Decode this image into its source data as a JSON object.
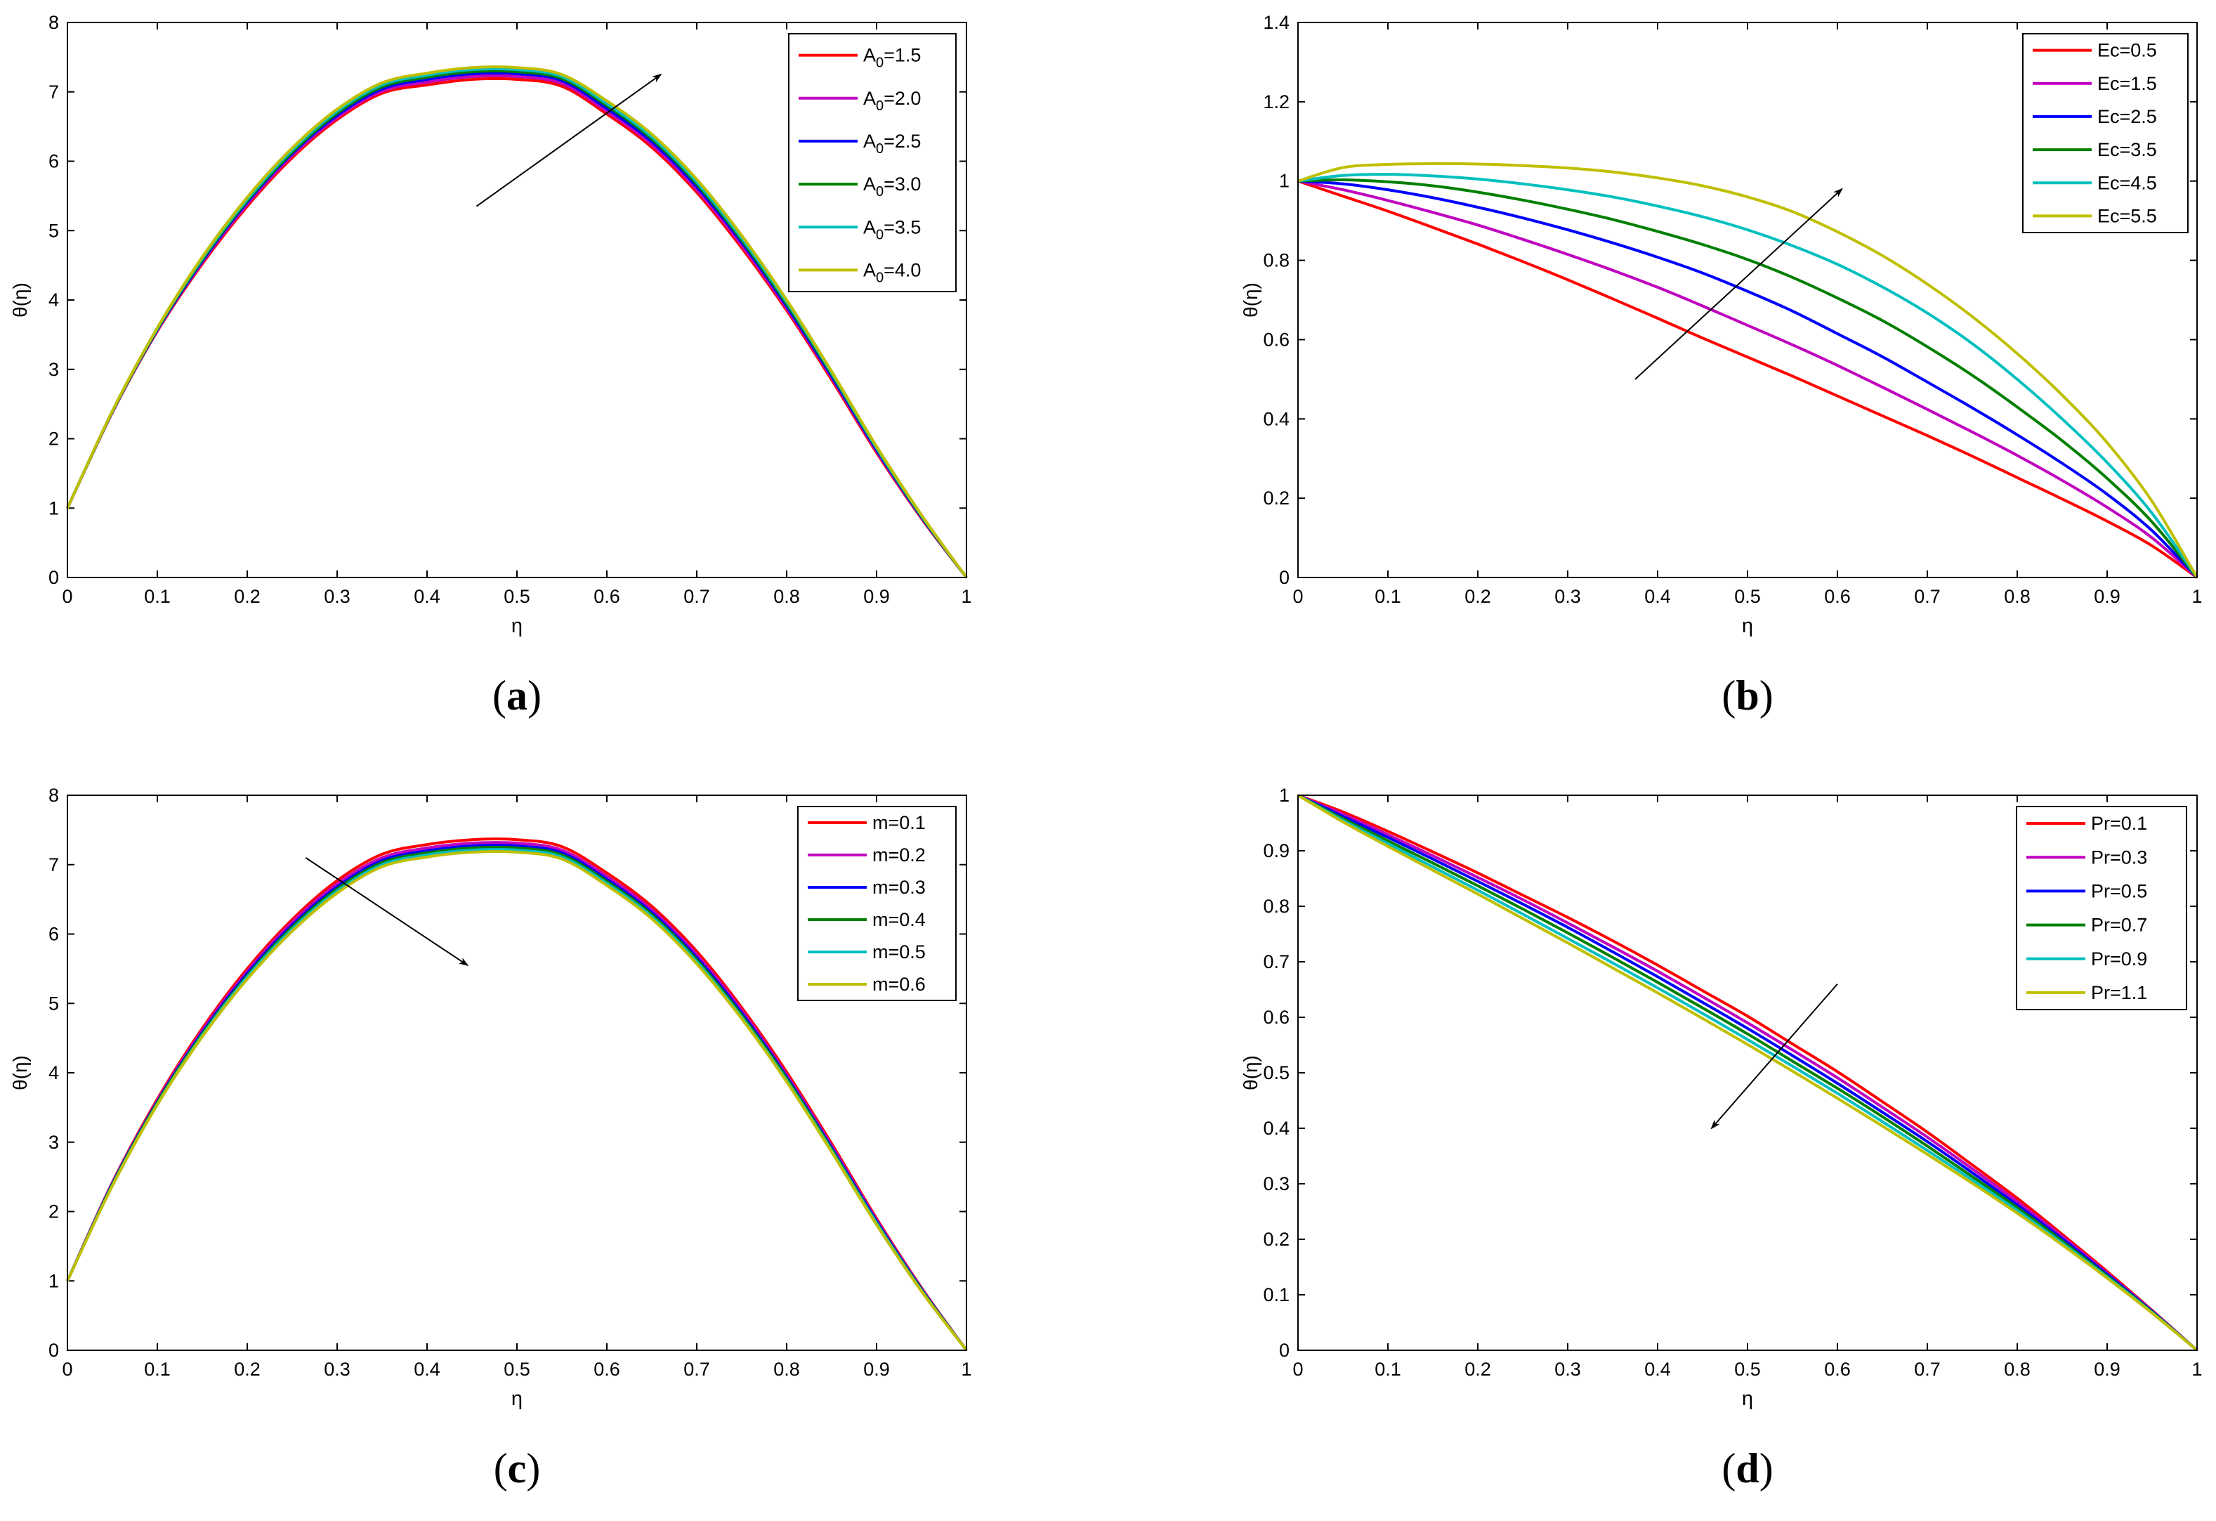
{
  "colors": [
    "#ff0000",
    "#bf00bf",
    "#0000ff",
    "#007f00",
    "#00bfbf",
    "#bfbf00"
  ],
  "chart_data": [
    {
      "id": "a",
      "type": "line",
      "panel_label": "(a)",
      "panel_letter": "a",
      "xlabel": "η",
      "ylabel": "θ(η)",
      "xlim": [
        0,
        1
      ],
      "ylim": [
        0,
        8
      ],
      "xticks": [
        "0",
        "0.1",
        "0.2",
        "0.3",
        "0.4",
        "0.5",
        "0.6",
        "0.7",
        "0.8",
        "0.9",
        "1"
      ],
      "yticks": [
        "0",
        "1",
        "2",
        "3",
        "4",
        "5",
        "6",
        "7",
        "8"
      ],
      "legend_position": "top-right",
      "x": [
        0,
        0.05,
        0.1,
        0.15,
        0.2,
        0.25,
        0.3,
        0.35,
        0.4,
        0.45,
        0.5,
        0.55,
        0.6,
        0.65,
        0.7,
        0.75,
        0.8,
        0.85,
        0.9,
        0.95,
        1
      ],
      "series": [
        {
          "name": "A0=1.5",
          "label_main": "A",
          "label_sub": "0",
          "label_rest": "=1.5",
          "values": [
            1.0,
            2.38,
            3.55,
            4.52,
            5.35,
            6.05,
            6.6,
            6.98,
            7.1,
            7.18,
            7.18,
            7.08,
            6.68,
            6.2,
            5.55,
            4.75,
            3.85,
            2.85,
            1.8,
            0.85,
            0.0
          ]
        },
        {
          "name": "A0=2.0",
          "label_main": "A",
          "label_sub": "0",
          "label_rest": "=2.0",
          "values": [
            1.0,
            2.38,
            3.56,
            4.54,
            5.38,
            6.08,
            6.63,
            7.01,
            7.14,
            7.22,
            7.22,
            7.12,
            6.72,
            6.24,
            5.59,
            4.79,
            3.88,
            2.88,
            1.82,
            0.86,
            0.0
          ]
        },
        {
          "name": "A0=2.5",
          "label_main": "A",
          "label_sub": "0",
          "label_rest": "=2.5",
          "values": [
            1.0,
            2.39,
            3.57,
            4.56,
            5.41,
            6.11,
            6.66,
            7.04,
            7.18,
            7.26,
            7.26,
            7.16,
            6.76,
            6.28,
            5.63,
            4.83,
            3.91,
            2.9,
            1.84,
            0.87,
            0.0
          ]
        },
        {
          "name": "A0=3.0",
          "label_main": "A",
          "label_sub": "0",
          "label_rest": "=3.0",
          "values": [
            1.0,
            2.39,
            3.58,
            4.58,
            5.43,
            6.13,
            6.69,
            7.07,
            7.21,
            7.29,
            7.29,
            7.19,
            6.8,
            6.32,
            5.67,
            4.86,
            3.94,
            2.93,
            1.86,
            0.88,
            0.0
          ]
        },
        {
          "name": "A0=3.5",
          "label_main": "A",
          "label_sub": "0",
          "label_rest": "=3.5",
          "values": [
            1.0,
            2.4,
            3.59,
            4.6,
            5.45,
            6.16,
            6.72,
            7.1,
            7.24,
            7.32,
            7.32,
            7.22,
            6.83,
            6.35,
            5.7,
            4.89,
            3.97,
            2.95,
            1.87,
            0.89,
            0.0
          ]
        },
        {
          "name": "A0=4.0",
          "label_main": "A",
          "label_sub": "0",
          "label_rest": "=4.0",
          "values": [
            1.0,
            2.4,
            3.6,
            4.62,
            5.48,
            6.19,
            6.75,
            7.13,
            7.27,
            7.35,
            7.35,
            7.25,
            6.87,
            6.39,
            5.74,
            4.93,
            4.0,
            2.97,
            1.89,
            0.9,
            0.0
          ]
        }
      ],
      "annotation": {
        "type": "arrow",
        "from": [
          0.455,
          5.35
        ],
        "to": [
          0.66,
          7.25
        ],
        "meaning": "increasing A0"
      }
    },
    {
      "id": "b",
      "type": "line",
      "panel_label": "(b)",
      "panel_letter": "b",
      "xlabel": "η",
      "ylabel": "θ(η)",
      "xlim": [
        0,
        1
      ],
      "ylim": [
        0,
        1.4
      ],
      "xticks": [
        "0",
        "0.1",
        "0.2",
        "0.3",
        "0.4",
        "0.5",
        "0.6",
        "0.7",
        "0.8",
        "0.9",
        "1"
      ],
      "yticks": [
        "0",
        "0.2",
        "0.4",
        "0.6",
        "0.8",
        "1",
        "1.2",
        "1.4"
      ],
      "legend_position": "top-right",
      "x": [
        0,
        0.05,
        0.1,
        0.15,
        0.2,
        0.25,
        0.3,
        0.35,
        0.4,
        0.45,
        0.5,
        0.55,
        0.6,
        0.65,
        0.7,
        0.75,
        0.8,
        0.85,
        0.9,
        0.95,
        1
      ],
      "series": [
        {
          "name": "Ec=0.5",
          "label_main": "Ec=0.5",
          "label_sub": "",
          "label_rest": "",
          "values": [
            1.0,
            0.962,
            0.924,
            0.883,
            0.841,
            0.797,
            0.751,
            0.703,
            0.654,
            0.604,
            0.556,
            0.508,
            0.458,
            0.408,
            0.358,
            0.306,
            0.252,
            0.198,
            0.142,
            0.08,
            0.0
          ]
        },
        {
          "name": "Ec=1.5",
          "label_main": "Ec=1.5",
          "label_sub": "",
          "label_rest": "",
          "values": [
            1.0,
            0.978,
            0.951,
            0.921,
            0.889,
            0.853,
            0.815,
            0.775,
            0.732,
            0.685,
            0.636,
            0.587,
            0.535,
            0.48,
            0.424,
            0.367,
            0.308,
            0.245,
            0.177,
            0.1,
            0.0
          ]
        },
        {
          "name": "Ec=2.5",
          "label_main": "Ec=2.5",
          "label_sub": "",
          "label_rest": "",
          "values": [
            1.0,
            0.993,
            0.978,
            0.958,
            0.934,
            0.907,
            0.877,
            0.844,
            0.808,
            0.768,
            0.722,
            0.672,
            0.615,
            0.557,
            0.493,
            0.428,
            0.36,
            0.288,
            0.21,
            0.118,
            0.0
          ]
        },
        {
          "name": "Ec=3.5",
          "label_main": "Ec=3.5",
          "label_sub": "",
          "label_rest": "",
          "values": [
            1.0,
            1.003,
            0.998,
            0.988,
            0.972,
            0.952,
            0.929,
            0.903,
            0.873,
            0.84,
            0.802,
            0.757,
            0.705,
            0.648,
            0.582,
            0.51,
            0.43,
            0.345,
            0.25,
            0.14,
            0.0
          ]
        },
        {
          "name": "Ec=4.5",
          "label_main": "Ec=4.5",
          "label_sub": "",
          "label_rest": "",
          "values": [
            1.0,
            1.014,
            1.017,
            1.013,
            1.005,
            0.993,
            0.978,
            0.96,
            0.937,
            0.91,
            0.877,
            0.837,
            0.79,
            0.733,
            0.667,
            0.59,
            0.5,
            0.4,
            0.29,
            0.162,
            0.0
          ]
        },
        {
          "name": "Ec=5.5",
          "label_main": "Ec=5.5",
          "label_sub": "",
          "label_rest": "",
          "values": [
            1.0,
            1.034,
            1.042,
            1.044,
            1.043,
            1.039,
            1.033,
            1.023,
            1.008,
            0.988,
            0.96,
            0.923,
            0.872,
            0.812,
            0.74,
            0.658,
            0.565,
            0.46,
            0.34,
            0.192,
            0.0
          ]
        }
      ],
      "annotation": {
        "type": "arrow",
        "from": [
          0.375,
          0.5
        ],
        "to": [
          0.605,
          0.98
        ],
        "meaning": "increasing Ec"
      }
    },
    {
      "id": "c",
      "type": "line",
      "panel_label": "(c)",
      "panel_letter": "c",
      "xlabel": "η",
      "ylabel": "θ(η)",
      "xlim": [
        0,
        1
      ],
      "ylim": [
        0,
        8
      ],
      "xticks": [
        "0",
        "0.1",
        "0.2",
        "0.3",
        "0.4",
        "0.5",
        "0.6",
        "0.7",
        "0.8",
        "0.9",
        "1"
      ],
      "yticks": [
        "0",
        "1",
        "2",
        "3",
        "4",
        "5",
        "6",
        "7",
        "8"
      ],
      "legend_position": "top-right",
      "x": [
        0,
        0.05,
        0.1,
        0.15,
        0.2,
        0.25,
        0.3,
        0.35,
        0.4,
        0.45,
        0.5,
        0.55,
        0.6,
        0.65,
        0.7,
        0.75,
        0.8,
        0.85,
        0.9,
        0.95,
        1
      ],
      "series": [
        {
          "name": "m=0.1",
          "label_main": "m=0.1",
          "label_sub": "",
          "label_rest": "",
          "values": [
            1.0,
            2.42,
            3.62,
            4.64,
            5.5,
            6.21,
            6.77,
            7.15,
            7.29,
            7.36,
            7.36,
            7.26,
            6.88,
            6.4,
            5.75,
            4.94,
            4.01,
            2.98,
            1.9,
            0.9,
            0.0
          ]
        },
        {
          "name": "m=0.2",
          "label_main": "m=0.2",
          "label_sub": "",
          "label_rest": "",
          "values": [
            1.0,
            2.41,
            3.6,
            4.61,
            5.46,
            6.17,
            6.72,
            7.1,
            7.24,
            7.31,
            7.31,
            7.21,
            6.83,
            6.35,
            5.7,
            4.9,
            3.97,
            2.95,
            1.88,
            0.89,
            0.0
          ]
        },
        {
          "name": "m=0.3",
          "label_main": "m=0.3",
          "label_sub": "",
          "label_rest": "",
          "values": [
            1.0,
            2.4,
            3.58,
            4.58,
            5.43,
            6.13,
            6.68,
            7.06,
            7.2,
            7.27,
            7.27,
            7.17,
            6.79,
            6.31,
            5.66,
            4.86,
            3.94,
            2.92,
            1.86,
            0.88,
            0.0
          ]
        },
        {
          "name": "m=0.4",
          "label_main": "m=0.4",
          "label_sub": "",
          "label_rest": "",
          "values": [
            1.0,
            2.39,
            3.57,
            4.56,
            5.4,
            6.1,
            6.65,
            7.03,
            7.17,
            7.24,
            7.24,
            7.14,
            6.76,
            6.28,
            5.63,
            4.83,
            3.92,
            2.9,
            1.84,
            0.87,
            0.0
          ]
        },
        {
          "name": "m=0.5",
          "label_main": "m=0.5",
          "label_sub": "",
          "label_rest": "",
          "values": [
            1.0,
            2.38,
            3.55,
            4.54,
            5.38,
            6.07,
            6.62,
            7.0,
            7.14,
            7.21,
            7.21,
            7.11,
            6.73,
            6.25,
            5.6,
            4.8,
            3.89,
            2.88,
            1.83,
            0.86,
            0.0
          ]
        },
        {
          "name": "m=0.6",
          "label_main": "m=0.6",
          "label_sub": "",
          "label_rest": "",
          "values": [
            1.0,
            2.37,
            3.54,
            4.52,
            5.35,
            6.04,
            6.59,
            6.97,
            7.11,
            7.18,
            7.18,
            7.08,
            6.7,
            6.22,
            5.57,
            4.78,
            3.87,
            2.86,
            1.81,
            0.85,
            0.0
          ]
        }
      ],
      "annotation": {
        "type": "arrow",
        "from": [
          0.265,
          7.1
        ],
        "to": [
          0.445,
          5.55
        ],
        "meaning": "increasing m"
      }
    },
    {
      "id": "d",
      "type": "line",
      "panel_label": "(d)",
      "panel_letter": "d",
      "xlabel": "η",
      "ylabel": "θ(η)",
      "xlim": [
        0,
        1
      ],
      "ylim": [
        0,
        1
      ],
      "xticks": [
        "0",
        "0.1",
        "0.2",
        "0.3",
        "0.4",
        "0.5",
        "0.6",
        "0.7",
        "0.8",
        "0.9",
        "1"
      ],
      "yticks": [
        "0",
        "0.1",
        "0.2",
        "0.3",
        "0.4",
        "0.5",
        "0.6",
        "0.7",
        "0.8",
        "0.9",
        "1"
      ],
      "legend_position": "top-right",
      "x": [
        0,
        0.05,
        0.1,
        0.15,
        0.2,
        0.25,
        0.3,
        0.35,
        0.4,
        0.45,
        0.5,
        0.55,
        0.6,
        0.65,
        0.7,
        0.75,
        0.8,
        0.85,
        0.9,
        0.95,
        1
      ],
      "series": [
        {
          "name": "Pr=0.1",
          "label_main": "Pr=0.1",
          "label_sub": "",
          "label_rest": "",
          "values": [
            1.0,
            0.97,
            0.935,
            0.898,
            0.86,
            0.82,
            0.78,
            0.738,
            0.694,
            0.648,
            0.602,
            0.552,
            0.502,
            0.448,
            0.393,
            0.334,
            0.274,
            0.209,
            0.142,
            0.072,
            0.0
          ]
        },
        {
          "name": "Pr=0.3",
          "label_main": "Pr=0.3",
          "label_sub": "",
          "label_rest": "",
          "values": [
            1.0,
            0.966,
            0.929,
            0.891,
            0.852,
            0.812,
            0.77,
            0.727,
            0.683,
            0.637,
            0.59,
            0.541,
            0.491,
            0.438,
            0.384,
            0.327,
            0.268,
            0.205,
            0.139,
            0.071,
            0.0
          ]
        },
        {
          "name": "Pr=0.5",
          "label_main": "Pr=0.5",
          "label_sub": "",
          "label_rest": "",
          "values": [
            1.0,
            0.962,
            0.924,
            0.885,
            0.845,
            0.804,
            0.762,
            0.718,
            0.673,
            0.627,
            0.58,
            0.531,
            0.481,
            0.429,
            0.376,
            0.32,
            0.262,
            0.201,
            0.137,
            0.07,
            0.0
          ]
        },
        {
          "name": "Pr=0.7",
          "label_main": "Pr=0.7",
          "label_sub": "",
          "label_rest": "",
          "values": [
            1.0,
            0.958,
            0.918,
            0.878,
            0.837,
            0.795,
            0.752,
            0.708,
            0.663,
            0.617,
            0.57,
            0.521,
            0.472,
            0.421,
            0.368,
            0.313,
            0.257,
            0.197,
            0.134,
            0.069,
            0.0
          ]
        },
        {
          "name": "Pr=0.9",
          "label_main": "Pr=0.9",
          "label_sub": "",
          "label_rest": "",
          "values": [
            1.0,
            0.955,
            0.913,
            0.871,
            0.829,
            0.786,
            0.742,
            0.698,
            0.653,
            0.607,
            0.56,
            0.512,
            0.463,
            0.412,
            0.36,
            0.307,
            0.252,
            0.193,
            0.132,
            0.068,
            0.0
          ]
        },
        {
          "name": "Pr=1.1",
          "label_main": "Pr=1.1",
          "label_sub": "",
          "label_rest": "",
          "values": [
            1.0,
            0.952,
            0.908,
            0.865,
            0.822,
            0.778,
            0.734,
            0.689,
            0.644,
            0.598,
            0.551,
            0.503,
            0.454,
            0.404,
            0.353,
            0.301,
            0.247,
            0.19,
            0.13,
            0.067,
            0.0
          ]
        }
      ],
      "annotation": {
        "type": "arrow",
        "from": [
          0.6,
          0.66
        ],
        "to": [
          0.46,
          0.4
        ],
        "meaning": "increasing Pr"
      }
    }
  ]
}
